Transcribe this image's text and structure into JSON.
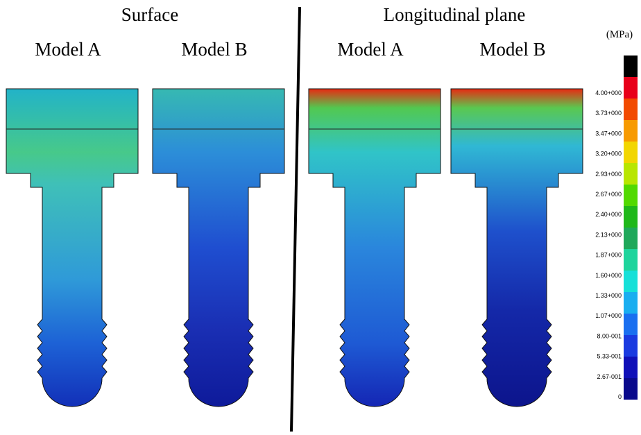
{
  "headers": {
    "left": "Surface",
    "right": "Longitudinal plane"
  },
  "panels": [
    {
      "label": "Model A"
    },
    {
      "label": "Model B"
    },
    {
      "label": "Model A"
    },
    {
      "label": "Model B"
    }
  ],
  "legend": {
    "unit": "(MPa)",
    "labels": [
      "4.00+000",
      "3.73+000",
      "3.47+000",
      "3.20+000",
      "2.93+000",
      "2.67+000",
      "2.40+000",
      "2.13+000",
      "1.87+000",
      "1.60+000",
      "1.33+000",
      "1.07+000",
      "8.00-001",
      "5.33-001",
      "2.67-001",
      "0"
    ],
    "colors": [
      "#000000",
      "#e8001a",
      "#f24a00",
      "#f79a00",
      "#f2d600",
      "#b8e600",
      "#52d900",
      "#1fb81a",
      "#1fa85a",
      "#1ed49c",
      "#16e0d8",
      "#1aaef0",
      "#1a6ff0",
      "#1a3ae0",
      "#1010b8",
      "#0a0a8c"
    ]
  }
}
